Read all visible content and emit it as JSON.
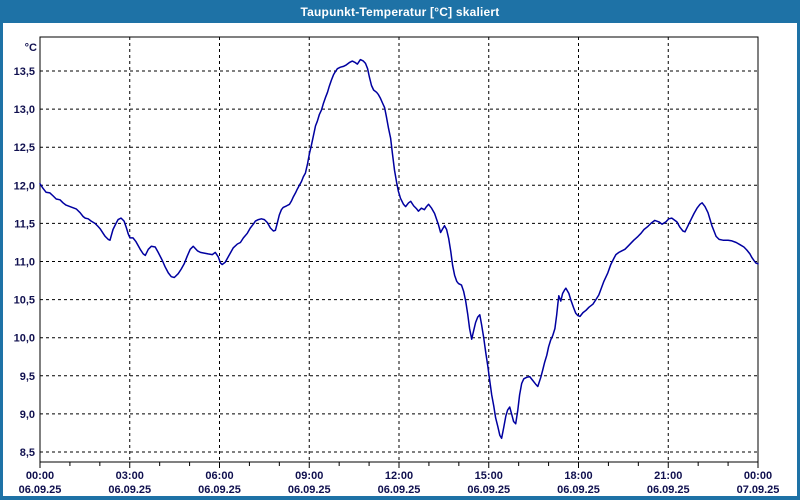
{
  "window": {
    "title": "Taupunkt-Temperatur [°C] skaliert"
  },
  "colors": {
    "titlebar": "#1E72A6",
    "window_border": "#1E72A6",
    "title_text": "#ffffff",
    "plot_background": "#ffffff",
    "plot_border": "#000000",
    "gridline": "#000000",
    "tick": "#000000",
    "label_text": "#10104f",
    "line": "#0000A0"
  },
  "chart_data": {
    "type": "line",
    "title": "Taupunkt-Temperatur [°C] skaliert",
    "ylabel": "°C",
    "unit_label": "°C",
    "grid": "dashed",
    "legend_position": "none",
    "xlim_hours": [
      0,
      24
    ],
    "ylim": [
      8.37,
      13.95
    ],
    "y_ticks": [
      {
        "value": 13.5,
        "label": "13,5"
      },
      {
        "value": 13.0,
        "label": "13,0"
      },
      {
        "value": 12.5,
        "label": "12,5"
      },
      {
        "value": 12.0,
        "label": "12,0"
      },
      {
        "value": 11.5,
        "label": "11,5"
      },
      {
        "value": 11.0,
        "label": "11,0"
      },
      {
        "value": 10.5,
        "label": "10,5"
      },
      {
        "value": 10.0,
        "label": "10,0"
      },
      {
        "value": 9.5,
        "label": "9,5"
      },
      {
        "value": 9.0,
        "label": "9,0"
      },
      {
        "value": 8.5,
        "label": "8,5"
      }
    ],
    "x_ticks": [
      {
        "hour": 0,
        "time": "00:00",
        "date": "06.09.25"
      },
      {
        "hour": 3,
        "time": "03:00",
        "date": "06.09.25"
      },
      {
        "hour": 6,
        "time": "06:00",
        "date": "06.09.25"
      },
      {
        "hour": 9,
        "time": "09:00",
        "date": "06.09.25"
      },
      {
        "hour": 12,
        "time": "12:00",
        "date": "06.09.25"
      },
      {
        "hour": 15,
        "time": "15:00",
        "date": "06.09.25"
      },
      {
        "hour": 18,
        "time": "18:00",
        "date": "06.09.25"
      },
      {
        "hour": 21,
        "time": "21:00",
        "date": "06.09.25"
      },
      {
        "hour": 24,
        "time": "00:00",
        "date": "07.09.25"
      }
    ],
    "minor_tick_every_hours": 1,
    "series": [
      {
        "name": "Taupunkt-Temperatur",
        "points": [
          [
            0.0,
            12.02
          ],
          [
            0.1,
            11.96
          ],
          [
            0.2,
            11.91
          ],
          [
            0.33,
            11.9
          ],
          [
            0.44,
            11.86
          ],
          [
            0.54,
            11.82
          ],
          [
            0.67,
            11.81
          ],
          [
            0.77,
            11.77
          ],
          [
            0.87,
            11.74
          ],
          [
            1.0,
            11.72
          ],
          [
            1.21,
            11.69
          ],
          [
            1.34,
            11.64
          ],
          [
            1.44,
            11.59
          ],
          [
            1.51,
            11.57
          ],
          [
            1.61,
            11.56
          ],
          [
            1.71,
            11.53
          ],
          [
            1.84,
            11.5
          ],
          [
            1.94,
            11.46
          ],
          [
            2.01,
            11.43
          ],
          [
            2.11,
            11.37
          ],
          [
            2.18,
            11.33
          ],
          [
            2.28,
            11.29
          ],
          [
            2.34,
            11.28
          ],
          [
            2.44,
            11.42
          ],
          [
            2.54,
            11.5
          ],
          [
            2.61,
            11.55
          ],
          [
            2.71,
            11.57
          ],
          [
            2.81,
            11.53
          ],
          [
            2.88,
            11.45
          ],
          [
            2.95,
            11.36
          ],
          [
            3.01,
            11.31
          ],
          [
            3.11,
            11.31
          ],
          [
            3.21,
            11.26
          ],
          [
            3.35,
            11.16
          ],
          [
            3.45,
            11.1
          ],
          [
            3.52,
            11.08
          ],
          [
            3.62,
            11.16
          ],
          [
            3.72,
            11.2
          ],
          [
            3.85,
            11.19
          ],
          [
            3.95,
            11.12
          ],
          [
            4.08,
            11.02
          ],
          [
            4.18,
            10.93
          ],
          [
            4.29,
            10.85
          ],
          [
            4.39,
            10.8
          ],
          [
            4.49,
            10.79
          ],
          [
            4.62,
            10.84
          ],
          [
            4.72,
            10.9
          ],
          [
            4.82,
            10.97
          ],
          [
            4.92,
            11.07
          ],
          [
            5.02,
            11.16
          ],
          [
            5.12,
            11.2
          ],
          [
            5.26,
            11.14
          ],
          [
            5.36,
            11.12
          ],
          [
            5.49,
            11.11
          ],
          [
            5.62,
            11.1
          ],
          [
            5.76,
            11.09
          ],
          [
            5.86,
            11.12
          ],
          [
            5.96,
            11.06
          ],
          [
            6.03,
            10.98
          ],
          [
            6.09,
            10.96
          ],
          [
            6.19,
            10.99
          ],
          [
            6.26,
            11.04
          ],
          [
            6.36,
            11.11
          ],
          [
            6.46,
            11.18
          ],
          [
            6.6,
            11.23
          ],
          [
            6.7,
            11.25
          ],
          [
            6.8,
            11.31
          ],
          [
            6.93,
            11.37
          ],
          [
            7.03,
            11.44
          ],
          [
            7.13,
            11.49
          ],
          [
            7.2,
            11.53
          ],
          [
            7.3,
            11.55
          ],
          [
            7.4,
            11.56
          ],
          [
            7.5,
            11.55
          ],
          [
            7.6,
            11.51
          ],
          [
            7.7,
            11.44
          ],
          [
            7.8,
            11.4
          ],
          [
            7.87,
            11.41
          ],
          [
            7.93,
            11.5
          ],
          [
            8.0,
            11.61
          ],
          [
            8.07,
            11.68
          ],
          [
            8.13,
            11.71
          ],
          [
            8.24,
            11.73
          ],
          [
            8.34,
            11.75
          ],
          [
            8.4,
            11.79
          ],
          [
            8.47,
            11.85
          ],
          [
            8.54,
            11.9
          ],
          [
            8.6,
            11.95
          ],
          [
            8.67,
            12.0
          ],
          [
            8.74,
            12.05
          ],
          [
            8.8,
            12.11
          ],
          [
            8.87,
            12.16
          ],
          [
            8.94,
            12.28
          ],
          [
            9.01,
            12.42
          ],
          [
            9.07,
            12.52
          ],
          [
            9.14,
            12.65
          ],
          [
            9.21,
            12.78
          ],
          [
            9.27,
            12.84
          ],
          [
            9.34,
            12.93
          ],
          [
            9.41,
            12.99
          ],
          [
            9.47,
            13.07
          ],
          [
            9.54,
            13.15
          ],
          [
            9.61,
            13.22
          ],
          [
            9.67,
            13.3
          ],
          [
            9.74,
            13.38
          ],
          [
            9.81,
            13.45
          ],
          [
            9.87,
            13.49
          ],
          [
            9.94,
            13.53
          ],
          [
            10.04,
            13.55
          ],
          [
            10.14,
            13.56
          ],
          [
            10.24,
            13.58
          ],
          [
            10.34,
            13.61
          ],
          [
            10.44,
            13.63
          ],
          [
            10.54,
            13.61
          ],
          [
            10.61,
            13.59
          ],
          [
            10.71,
            13.65
          ],
          [
            10.81,
            13.63
          ],
          [
            10.88,
            13.6
          ],
          [
            10.95,
            13.53
          ],
          [
            11.01,
            13.42
          ],
          [
            11.08,
            13.31
          ],
          [
            11.15,
            13.25
          ],
          [
            11.25,
            13.22
          ],
          [
            11.31,
            13.19
          ],
          [
            11.38,
            13.14
          ],
          [
            11.45,
            13.08
          ],
          [
            11.52,
            13.02
          ],
          [
            11.58,
            12.9
          ],
          [
            11.65,
            12.75
          ],
          [
            11.72,
            12.62
          ],
          [
            11.78,
            12.42
          ],
          [
            11.85,
            12.2
          ],
          [
            11.92,
            12.04
          ],
          [
            11.98,
            11.92
          ],
          [
            12.05,
            11.83
          ],
          [
            12.15,
            11.75
          ],
          [
            12.22,
            11.72
          ],
          [
            12.32,
            11.77
          ],
          [
            12.39,
            11.79
          ],
          [
            12.49,
            11.73
          ],
          [
            12.59,
            11.69
          ],
          [
            12.65,
            11.66
          ],
          [
            12.75,
            11.7
          ],
          [
            12.85,
            11.68
          ],
          [
            12.92,
            11.72
          ],
          [
            12.99,
            11.75
          ],
          [
            13.09,
            11.7
          ],
          [
            13.19,
            11.63
          ],
          [
            13.26,
            11.55
          ],
          [
            13.32,
            11.48
          ],
          [
            13.39,
            11.38
          ],
          [
            13.46,
            11.43
          ],
          [
            13.52,
            11.47
          ],
          [
            13.59,
            11.42
          ],
          [
            13.66,
            11.3
          ],
          [
            13.73,
            11.13
          ],
          [
            13.79,
            10.95
          ],
          [
            13.86,
            10.82
          ],
          [
            13.93,
            10.74
          ],
          [
            13.99,
            10.71
          ],
          [
            14.09,
            10.69
          ],
          [
            14.16,
            10.61
          ],
          [
            14.23,
            10.48
          ],
          [
            14.3,
            10.3
          ],
          [
            14.36,
            10.12
          ],
          [
            14.43,
            9.98
          ],
          [
            14.5,
            10.1
          ],
          [
            14.56,
            10.2
          ],
          [
            14.63,
            10.27
          ],
          [
            14.7,
            10.3
          ],
          [
            14.76,
            10.17
          ],
          [
            14.83,
            10.0
          ],
          [
            14.9,
            9.8
          ],
          [
            14.97,
            9.62
          ],
          [
            15.03,
            9.45
          ],
          [
            15.1,
            9.25
          ],
          [
            15.17,
            9.1
          ],
          [
            15.23,
            8.95
          ],
          [
            15.3,
            8.84
          ],
          [
            15.37,
            8.72
          ],
          [
            15.43,
            8.68
          ],
          [
            15.5,
            8.82
          ],
          [
            15.57,
            8.97
          ],
          [
            15.63,
            9.05
          ],
          [
            15.7,
            9.09
          ],
          [
            15.77,
            8.99
          ],
          [
            15.83,
            8.9
          ],
          [
            15.9,
            8.87
          ],
          [
            15.97,
            9.05
          ],
          [
            16.03,
            9.25
          ],
          [
            16.1,
            9.4
          ],
          [
            16.17,
            9.46
          ],
          [
            16.27,
            9.48
          ],
          [
            16.37,
            9.49
          ],
          [
            16.47,
            9.44
          ],
          [
            16.57,
            9.39
          ],
          [
            16.64,
            9.36
          ],
          [
            16.74,
            9.48
          ],
          [
            16.8,
            9.57
          ],
          [
            16.87,
            9.68
          ],
          [
            16.94,
            9.77
          ],
          [
            17.0,
            9.88
          ],
          [
            17.07,
            9.97
          ],
          [
            17.14,
            10.03
          ],
          [
            17.21,
            10.12
          ],
          [
            17.27,
            10.3
          ],
          [
            17.31,
            10.45
          ],
          [
            17.34,
            10.55
          ],
          [
            17.41,
            10.48
          ],
          [
            17.47,
            10.58
          ],
          [
            17.54,
            10.63
          ],
          [
            17.58,
            10.65
          ],
          [
            17.68,
            10.58
          ],
          [
            17.74,
            10.5
          ],
          [
            17.84,
            10.39
          ],
          [
            17.91,
            10.32
          ],
          [
            17.98,
            10.29
          ],
          [
            18.05,
            10.28
          ],
          [
            18.15,
            10.33
          ],
          [
            18.25,
            10.36
          ],
          [
            18.35,
            10.4
          ],
          [
            18.48,
            10.44
          ],
          [
            18.58,
            10.5
          ],
          [
            18.68,
            10.56
          ],
          [
            18.85,
            10.74
          ],
          [
            18.98,
            10.85
          ],
          [
            19.08,
            10.96
          ],
          [
            19.18,
            11.04
          ],
          [
            19.25,
            11.09
          ],
          [
            19.35,
            11.12
          ],
          [
            19.45,
            11.14
          ],
          [
            19.55,
            11.16
          ],
          [
            19.65,
            11.2
          ],
          [
            19.75,
            11.24
          ],
          [
            19.85,
            11.28
          ],
          [
            19.99,
            11.33
          ],
          [
            20.09,
            11.37
          ],
          [
            20.19,
            11.42
          ],
          [
            20.32,
            11.46
          ],
          [
            20.42,
            11.5
          ],
          [
            20.55,
            11.54
          ],
          [
            20.69,
            11.52
          ],
          [
            20.79,
            11.49
          ],
          [
            20.92,
            11.52
          ],
          [
            21.02,
            11.56
          ],
          [
            21.12,
            11.57
          ],
          [
            21.29,
            11.52
          ],
          [
            21.39,
            11.45
          ],
          [
            21.49,
            11.4
          ],
          [
            21.56,
            11.39
          ],
          [
            21.66,
            11.47
          ],
          [
            21.76,
            11.55
          ],
          [
            21.86,
            11.63
          ],
          [
            21.96,
            11.7
          ],
          [
            22.06,
            11.75
          ],
          [
            22.13,
            11.77
          ],
          [
            22.23,
            11.72
          ],
          [
            22.33,
            11.64
          ],
          [
            22.4,
            11.55
          ],
          [
            22.46,
            11.47
          ],
          [
            22.53,
            11.4
          ],
          [
            22.6,
            11.33
          ],
          [
            22.7,
            11.29
          ],
          [
            22.83,
            11.28
          ],
          [
            23.0,
            11.28
          ],
          [
            23.13,
            11.27
          ],
          [
            23.27,
            11.25
          ],
          [
            23.4,
            11.22
          ],
          [
            23.53,
            11.19
          ],
          [
            23.63,
            11.15
          ],
          [
            23.73,
            11.1
          ],
          [
            23.8,
            11.05
          ],
          [
            23.87,
            11.01
          ],
          [
            23.93,
            10.98
          ],
          [
            24.0,
            10.97
          ]
        ]
      }
    ]
  }
}
